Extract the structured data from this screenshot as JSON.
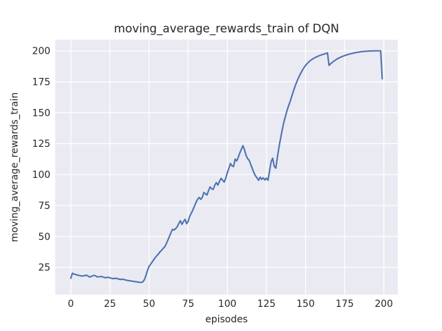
{
  "chart_data": {
    "type": "line",
    "title": "moving_average_rewards_train of DQN",
    "xlabel": "episodes",
    "ylabel": "moving_average_rewards_train",
    "x_ticks": [
      0,
      25,
      50,
      75,
      100,
      125,
      150,
      175,
      200
    ],
    "y_ticks": [
      25,
      50,
      75,
      100,
      125,
      150,
      175,
      200
    ],
    "xlim": [
      -9.95,
      208.95
    ],
    "ylim": [
      3,
      209
    ],
    "grid": true,
    "legend": null,
    "style": "seaborn-darkgrid",
    "colors": {
      "line": "#4c72b0",
      "axes_background": "#eaeaf2",
      "grid": "#ffffff",
      "text": "#262626",
      "figure_background": "#ffffff"
    },
    "series": [
      {
        "name": "moving_average_rewards_train",
        "x_start": 0,
        "x_step": 1,
        "values": [
          16.2,
          20.3,
          19.6,
          19.2,
          18.9,
          18.5,
          18.3,
          18.0,
          18.1,
          18.4,
          18.7,
          18.0,
          17.2,
          17.6,
          18.3,
          18.5,
          18.0,
          17.3,
          17.4,
          17.6,
          17.5,
          17.0,
          16.6,
          16.8,
          17.0,
          16.5,
          16.2,
          15.9,
          16.1,
          16.2,
          15.8,
          15.4,
          15.2,
          15.5,
          15.1,
          14.8,
          14.5,
          14.3,
          14.1,
          13.9,
          13.7,
          13.5,
          13.3,
          13.1,
          12.9,
          12.8,
          13.3,
          15.0,
          18.5,
          22.5,
          25.8,
          27.6,
          29.3,
          31.2,
          33.0,
          34.5,
          35.8,
          37.6,
          38.8,
          40.3,
          41.6,
          44.0,
          47.0,
          50.0,
          53.0,
          55.8,
          55.2,
          56.3,
          57.8,
          60.5,
          62.7,
          59.8,
          62.0,
          63.8,
          60.3,
          62.2,
          66.4,
          68.8,
          71.5,
          74.5,
          77.5,
          80.0,
          81.5,
          80.0,
          81.5,
          85.5,
          84.5,
          83.5,
          87.0,
          90.0,
          88.5,
          88.0,
          91.5,
          93.5,
          91.5,
          94.5,
          97.0,
          95.5,
          94.0,
          97.0,
          101.5,
          105.0,
          109.0,
          107.0,
          106.5,
          112.5,
          111.0,
          114.0,
          117.5,
          120.5,
          123.4,
          120.0,
          115.5,
          112.8,
          111.5,
          108.0,
          104.8,
          101.5,
          99.0,
          97.3,
          95.4,
          97.9,
          96.1,
          97.4,
          95.7,
          97.1,
          95.4,
          102.9,
          110.4,
          113.2,
          106.6,
          105.2,
          114.0,
          122.0,
          129.0,
          135.5,
          141.5,
          146.5,
          151.0,
          155.0,
          158.5,
          162.5,
          166.5,
          170.3,
          173.7,
          176.8,
          179.6,
          182.1,
          184.4,
          186.4,
          188.2,
          189.7,
          191.0,
          192.1,
          193.0,
          193.8,
          194.5,
          195.1,
          195.7,
          196.2,
          196.7,
          197.1,
          197.5,
          197.9,
          198.3,
          188.3,
          189.5,
          190.6,
          191.6,
          192.5,
          193.3,
          194.0,
          194.6,
          195.2,
          195.7,
          196.2,
          196.6,
          197.0,
          197.4,
          197.7,
          198.0,
          198.3,
          198.6,
          198.8,
          199.0,
          199.2,
          199.4,
          199.5,
          199.6,
          199.7,
          199.8,
          199.9,
          199.9,
          200.0,
          200.0,
          200.0,
          200.0,
          200.0,
          200.0,
          177.4
        ]
      }
    ]
  }
}
